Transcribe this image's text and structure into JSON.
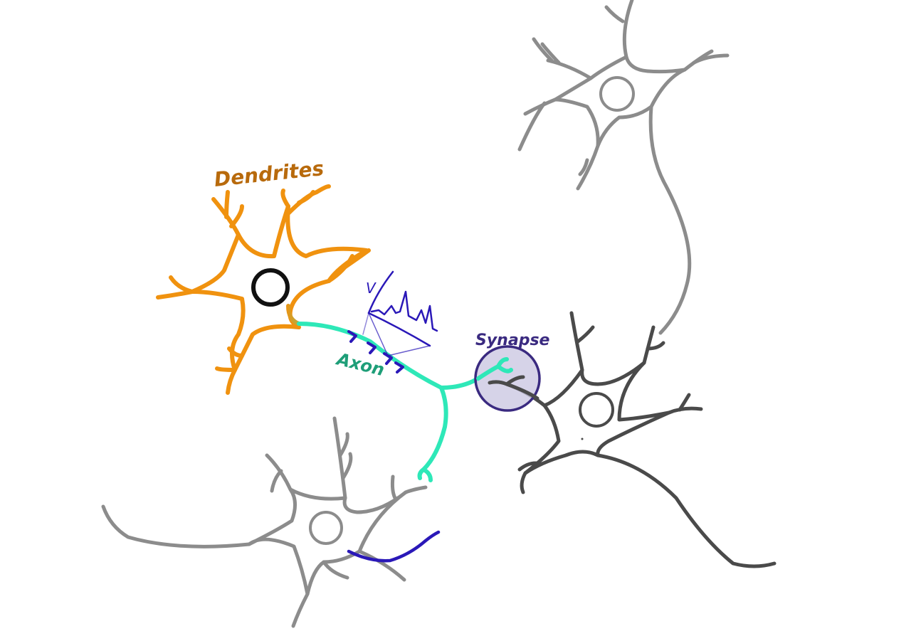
{
  "labels": {
    "dendrites": "Dendrites",
    "axon": "Axon",
    "synapse": "Synapse",
    "voltage_axis": "V"
  },
  "colors": {
    "main_neuron": "#f0920f",
    "soma_outline": "#111111",
    "axon": "#2ee8b8",
    "axon_label": "#1e9e78",
    "dendrites_label": "#b86a0c",
    "signal": "#2a18b8",
    "synapse_fill": "#c8c4e0",
    "synapse_stroke": "#3a2a80",
    "synapse_label": "#3a2a80",
    "neighbor_light": "#8c8c8c",
    "neighbor_dark": "#4a4a4a"
  }
}
